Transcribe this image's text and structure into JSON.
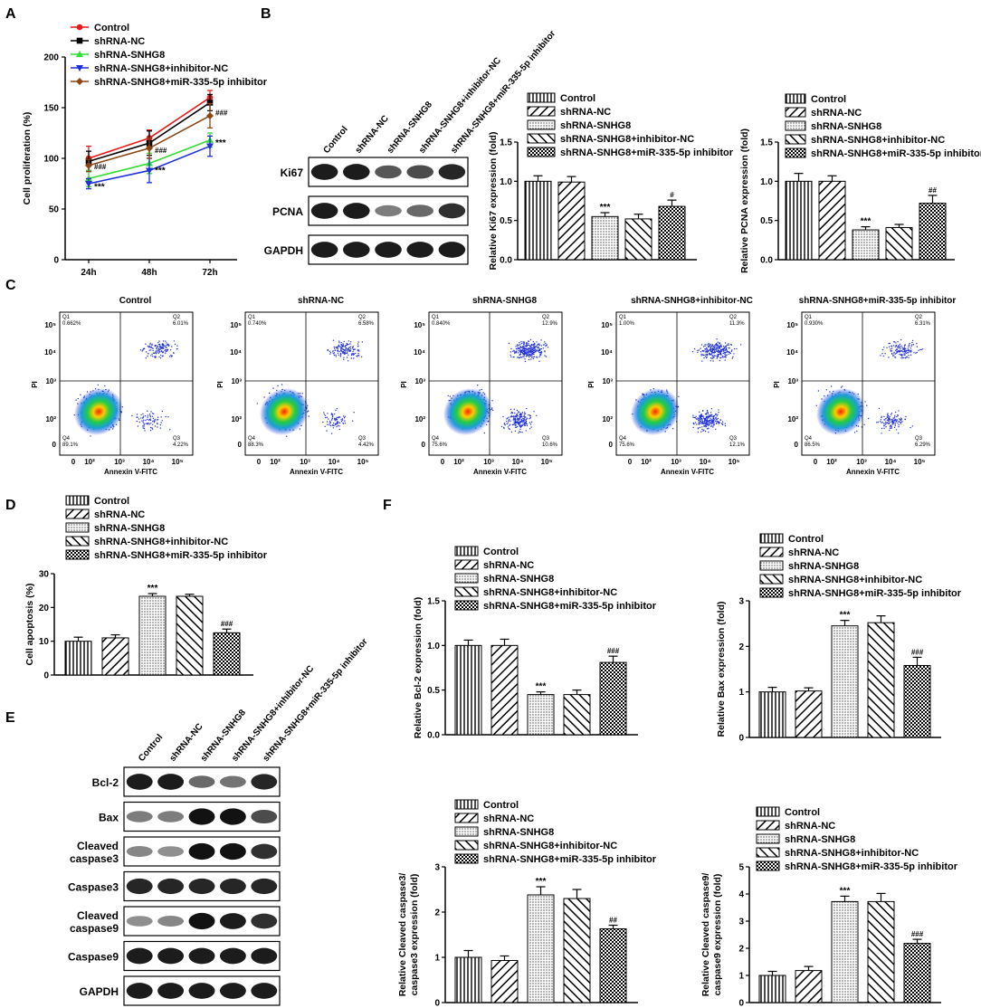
{
  "groups": [
    "Control",
    "shRNA-NC",
    "shRNA-SNHG8",
    "shRNA-SNHG8+inhibitor-NC",
    "shRNA-SNHG8+miR-335-5p inhibitor"
  ],
  "panel_labels": {
    "A": "A",
    "B": "B",
    "C": "C",
    "D": "D",
    "E": "E",
    "F": "F"
  },
  "chart_data": [
    {
      "id": "A",
      "type": "line",
      "x": [
        "24h",
        "48h",
        "72h"
      ],
      "ylabel": "Cell proliferation (%)",
      "ylim": [
        0,
        200
      ],
      "yticks": [
        0,
        50,
        100,
        150,
        200
      ],
      "series": [
        {
          "name": "Control",
          "color": "#e41a1c",
          "marker": "circle",
          "values": [
            100,
            120,
            160
          ],
          "errors": [
            12,
            8,
            7
          ]
        },
        {
          "name": "shRNA-NC",
          "color": "#000000",
          "marker": "square",
          "values": [
            97,
            115,
            155
          ],
          "errors": [
            10,
            12,
            8
          ]
        },
        {
          "name": "shRNA-SNHG8",
          "color": "#33dd33",
          "marker": "triangle-up",
          "values": [
            80,
            95,
            118
          ],
          "errors": [
            8,
            10,
            7
          ]
        },
        {
          "name": "shRNA-SNHG8+inhibitor-NC",
          "color": "#1f30d9",
          "marker": "triangle-down",
          "values": [
            75,
            88,
            112
          ],
          "errors": [
            5,
            12,
            10
          ]
        },
        {
          "name": "shRNA-SNHG8+miR-335-5p inhibitor",
          "color": "#8b4513",
          "marker": "diamond",
          "values": [
            93,
            110,
            142
          ],
          "errors": [
            6,
            10,
            12
          ]
        }
      ],
      "annotations": [
        {
          "text": "###",
          "x": "24h",
          "y": 92,
          "kind": "hash"
        },
        {
          "text": "***",
          "x": "24h",
          "y": 72,
          "kind": "star"
        },
        {
          "text": "###",
          "x": "48h",
          "y": 108,
          "kind": "hash"
        },
        {
          "text": "***",
          "x": "48h",
          "y": 88,
          "kind": "star"
        },
        {
          "text": "###",
          "x": "72h",
          "y": 145,
          "kind": "hash"
        },
        {
          "text": "***",
          "x": "72h",
          "y": 115,
          "kind": "star"
        }
      ]
    },
    {
      "id": "B1",
      "type": "bar",
      "categories_ref": "groups",
      "ylabel": "Relative Ki67 expression (fold)",
      "ylim": [
        0,
        1.5
      ],
      "yticks": [
        "0.0",
        "0.5",
        "1.0",
        "1.5"
      ],
      "values": [
        1.0,
        0.99,
        0.55,
        0.52,
        0.68
      ],
      "errors": [
        0.07,
        0.07,
        0.05,
        0.06,
        0.08
      ],
      "labels": [
        "",
        "",
        "***",
        "",
        "#"
      ]
    },
    {
      "id": "B2",
      "type": "bar",
      "categories_ref": "groups",
      "ylabel": "Relative PCNA expression (fold)",
      "ylim": [
        0,
        1.5
      ],
      "yticks": [
        "0.0",
        "0.5",
        "1.0",
        "1.5"
      ],
      "values": [
        1.0,
        1.0,
        0.38,
        0.41,
        0.72
      ],
      "errors": [
        0.1,
        0.07,
        0.04,
        0.04,
        0.1
      ],
      "labels": [
        "",
        "",
        "***",
        "",
        "##"
      ]
    },
    {
      "id": "D",
      "type": "bar",
      "categories_ref": "groups",
      "ylabel": "Cell apoptosis (%)",
      "ylim": [
        0,
        30
      ],
      "yticks": [
        "0",
        "10",
        "20",
        "30"
      ],
      "values": [
        10,
        11,
        23.3,
        23.3,
        12.5
      ],
      "errors": [
        1.2,
        0.9,
        0.8,
        0.6,
        1.1
      ],
      "labels": [
        "",
        "",
        "***",
        "",
        "###"
      ]
    },
    {
      "id": "F1",
      "type": "bar",
      "categories_ref": "groups",
      "ylabel": "Relative Bcl-2 expression (fold)",
      "ylim": [
        0,
        1.5
      ],
      "yticks": [
        "0.0",
        "0.5",
        "1.0",
        "1.5"
      ],
      "values": [
        1.0,
        1.0,
        0.45,
        0.45,
        0.81
      ],
      "errors": [
        0.06,
        0.07,
        0.03,
        0.05,
        0.07
      ],
      "labels": [
        "",
        "",
        "***",
        "",
        "###"
      ]
    },
    {
      "id": "F2",
      "type": "bar",
      "categories_ref": "groups",
      "ylabel": "Relative Bax expression (fold)",
      "ylim": [
        0,
        3
      ],
      "yticks": [
        "0",
        "1",
        "2",
        "3"
      ],
      "values": [
        1.0,
        1.02,
        2.45,
        2.52,
        1.58
      ],
      "errors": [
        0.1,
        0.07,
        0.12,
        0.15,
        0.18
      ],
      "labels": [
        "",
        "",
        "***",
        "",
        "###"
      ]
    },
    {
      "id": "F3",
      "type": "bar",
      "categories_ref": "groups",
      "ylabel_lines": [
        "Relative Cleaved caspase3/",
        "caspase3 expression (fold)"
      ],
      "ylim": [
        0,
        3
      ],
      "yticks": [
        "0",
        "1",
        "2",
        "3"
      ],
      "values": [
        1.0,
        0.93,
        2.38,
        2.3,
        1.63
      ],
      "errors": [
        0.15,
        0.1,
        0.18,
        0.2,
        0.08
      ],
      "labels": [
        "",
        "",
        "***",
        "",
        "##"
      ]
    },
    {
      "id": "F4",
      "type": "bar",
      "categories_ref": "groups",
      "ylabel_lines": [
        "Relative Cleaved caspase9/",
        "caspase9 expression (fold)"
      ],
      "ylim": [
        0,
        5
      ],
      "yticks": [
        "0",
        "1",
        "2",
        "3",
        "4",
        "5"
      ],
      "values": [
        1.0,
        1.18,
        3.72,
        3.72,
        2.18
      ],
      "errors": [
        0.15,
        0.15,
        0.2,
        0.3,
        0.15
      ],
      "labels": [
        "",
        "",
        "***",
        "",
        "###"
      ]
    }
  ],
  "flow": {
    "xlabel": "Annexin V-FITC",
    "ylabel": "PI",
    "xticks": [
      "0",
      "10²",
      "10³",
      "10⁴",
      "10⁵"
    ],
    "yticks": [
      "0",
      "10²",
      "10³",
      "10⁴",
      "10⁵"
    ],
    "plots": [
      {
        "title": "Control",
        "Q1": "0.662%",
        "Q2": "6.01%",
        "Q3": "4.22%",
        "Q4": "89.1%"
      },
      {
        "title": "shRNA-NC",
        "Q1": "0.740%",
        "Q2": "6.58%",
        "Q3": "4.42%",
        "Q4": "88.3%"
      },
      {
        "title": "shRNA-SNHG8",
        "Q1": "0.840%",
        "Q2": "12.9%",
        "Q3": "10.6%",
        "Q4": "75.6%"
      },
      {
        "title": "shRNA-SNHG8+inhibitor-NC",
        "Q1": "1.00%",
        "Q2": "11.3%",
        "Q3": "12.1%",
        "Q4": "75.6%"
      },
      {
        "title": "shRNA-SNHG8+miR-335-5p inhibitor",
        "Q1": "0.930%",
        "Q2": "6.31%",
        "Q3": "6.29%",
        "Q4": "86.5%"
      }
    ],
    "quadrants": [
      "Q1",
      "Q2",
      "Q3",
      "Q4"
    ]
  },
  "western_B": {
    "lanes": [
      "Control",
      "shRNA-NC",
      "shRNA-SNHG8",
      "shRNA-SNHG8+inhibitor-NC",
      "shRNA-SNHG8+miR-335-5p inhibitor"
    ],
    "rows": [
      {
        "label": "Ki67",
        "intensity": [
          0.85,
          0.85,
          0.55,
          0.6,
          0.8
        ]
      },
      {
        "label": "PCNA",
        "intensity": [
          0.85,
          0.85,
          0.35,
          0.45,
          0.75
        ]
      },
      {
        "label": "GAPDH",
        "intensity": [
          0.85,
          0.85,
          0.85,
          0.85,
          0.85
        ]
      }
    ]
  },
  "western_E": {
    "lanes": [
      "Control",
      "shRNA-NC",
      "shRNA-SNHG8",
      "shRNA-SNHG8+inhibitor-NC",
      "shRNA-SNHG8+miR-335-5p inhibitor"
    ],
    "rows": [
      {
        "label": "Bcl-2",
        "intensity": [
          0.85,
          0.85,
          0.45,
          0.4,
          0.8
        ]
      },
      {
        "label": "Bax",
        "intensity": [
          0.35,
          0.35,
          0.9,
          0.9,
          0.6
        ]
      },
      {
        "label": "Cleaved",
        "label2": "caspase3",
        "intensity": [
          0.3,
          0.25,
          0.9,
          0.9,
          0.75
        ]
      },
      {
        "label": "Caspase3",
        "intensity": [
          0.8,
          0.8,
          0.8,
          0.8,
          0.8
        ]
      },
      {
        "label": "Cleaved",
        "label2": "caspase9",
        "intensity": [
          0.25,
          0.3,
          0.9,
          0.85,
          0.75
        ]
      },
      {
        "label": "Caspase9",
        "intensity": [
          0.85,
          0.85,
          0.85,
          0.85,
          0.85
        ]
      },
      {
        "label": "GAPDH",
        "intensity": [
          0.85,
          0.85,
          0.85,
          0.85,
          0.85
        ]
      }
    ]
  }
}
